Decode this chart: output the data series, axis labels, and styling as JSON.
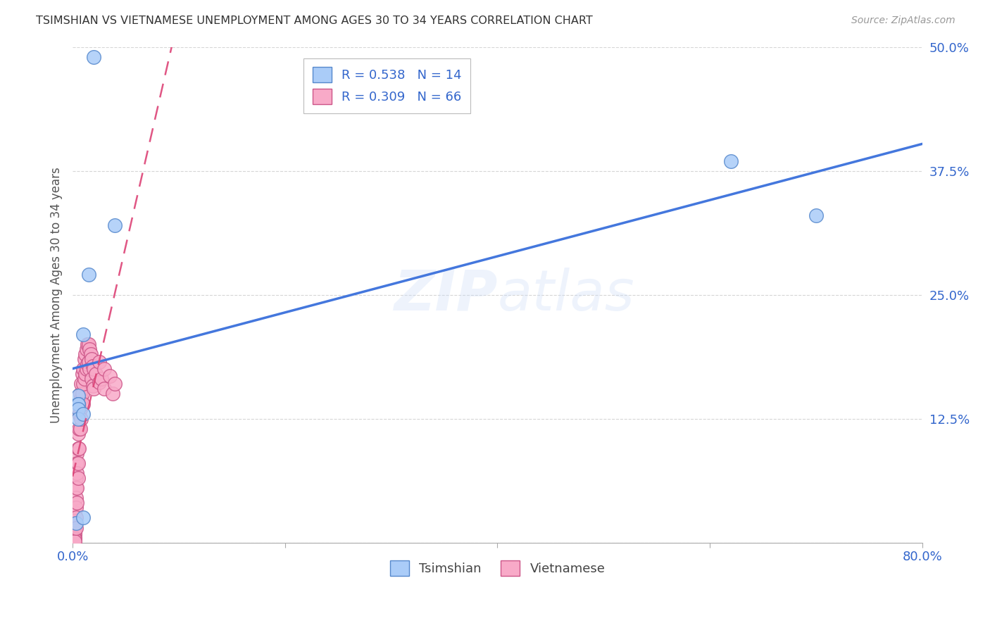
{
  "title": "TSIMSHIAN VS VIETNAMESE UNEMPLOYMENT AMONG AGES 30 TO 34 YEARS CORRELATION CHART",
  "source": "Source: ZipAtlas.com",
  "ylabel_label": "Unemployment Among Ages 30 to 34 years",
  "xlim": [
    0.0,
    0.8
  ],
  "ylim": [
    0.0,
    0.5
  ],
  "xticks": [
    0.0,
    0.2,
    0.4,
    0.6,
    0.8
  ],
  "yticks": [
    0.0,
    0.125,
    0.25,
    0.375,
    0.5
  ],
  "ytick_labels": [
    "",
    "12.5%",
    "25.0%",
    "37.5%",
    "50.0%"
  ],
  "xtick_labels": [
    "0.0%",
    "",
    "",
    "",
    "80.0%"
  ],
  "watermark": "ZIPatlas",
  "tsimshian_color": "#aaccf8",
  "vietnamese_color": "#f8aac8",
  "tsimshian_edge": "#5588cc",
  "vietnamese_edge": "#cc5588",
  "line_blue": "#4477dd",
  "line_pink": "#dd4477",
  "R_tsimshian": 0.538,
  "N_tsimshian": 14,
  "R_vietnamese": 0.309,
  "N_vietnamese": 66,
  "tsimshian_x": [
    0.02,
    0.015,
    0.01,
    0.005,
    0.005,
    0.005,
    0.005,
    0.005,
    0.01,
    0.04,
    0.003,
    0.62,
    0.7,
    0.01
  ],
  "tsimshian_y": [
    0.49,
    0.27,
    0.21,
    0.148,
    0.14,
    0.14,
    0.135,
    0.125,
    0.13,
    0.32,
    0.02,
    0.385,
    0.33,
    0.025
  ],
  "vietnamese_x": [
    0.002,
    0.002,
    0.002,
    0.002,
    0.002,
    0.002,
    0.002,
    0.002,
    0.002,
    0.003,
    0.003,
    0.003,
    0.003,
    0.003,
    0.003,
    0.004,
    0.004,
    0.004,
    0.004,
    0.004,
    0.005,
    0.005,
    0.005,
    0.005,
    0.006,
    0.006,
    0.006,
    0.007,
    0.007,
    0.007,
    0.008,
    0.008,
    0.008,
    0.009,
    0.009,
    0.01,
    0.01,
    0.01,
    0.011,
    0.011,
    0.012,
    0.012,
    0.013,
    0.013,
    0.014,
    0.014,
    0.015,
    0.015,
    0.016,
    0.016,
    0.017,
    0.018,
    0.018,
    0.019,
    0.019,
    0.02,
    0.02,
    0.022,
    0.025,
    0.025,
    0.027,
    0.03,
    0.03,
    0.035,
    0.038,
    0.04
  ],
  "vietnamese_y": [
    0.03,
    0.02,
    0.015,
    0.012,
    0.01,
    0.008,
    0.005,
    0.003,
    0.001,
    0.065,
    0.055,
    0.045,
    0.035,
    0.025,
    0.015,
    0.09,
    0.08,
    0.07,
    0.055,
    0.04,
    0.11,
    0.095,
    0.08,
    0.065,
    0.13,
    0.115,
    0.095,
    0.15,
    0.135,
    0.115,
    0.16,
    0.145,
    0.125,
    0.17,
    0.15,
    0.175,
    0.16,
    0.14,
    0.185,
    0.165,
    0.19,
    0.17,
    0.195,
    0.175,
    0.2,
    0.18,
    0.2,
    0.182,
    0.195,
    0.175,
    0.19,
    0.185,
    0.165,
    0.178,
    0.158,
    0.175,
    0.155,
    0.17,
    0.182,
    0.162,
    0.165,
    0.175,
    0.155,
    0.168,
    0.15,
    0.16
  ],
  "background_color": "#ffffff",
  "grid_color": "#cccccc",
  "axis_label_color": "#3366cc",
  "title_color": "#333333",
  "tsimshian_label": "Tsimshian",
  "vietnamese_label": "Vietnamese"
}
